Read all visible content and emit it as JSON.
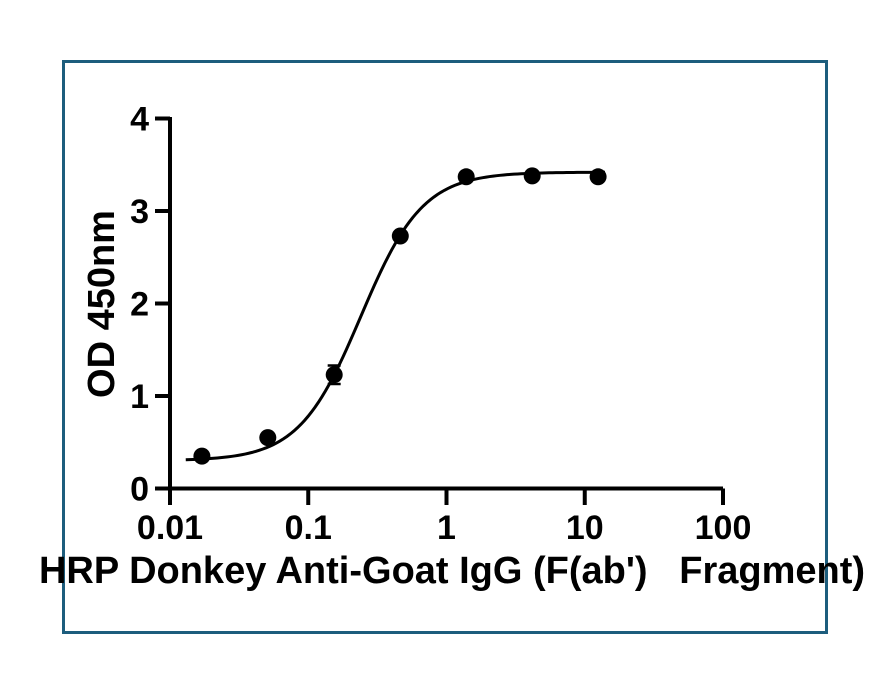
{
  "page": {
    "background": "#ffffff"
  },
  "frame": {
    "border_color": "#1d5d7d"
  },
  "chart_data": {
    "type": "scatter",
    "title": "",
    "xlabel": "HRP Donkey Anti-Goat IgG (F(ab')   Fragment)",
    "ylabel": "OD 450nm",
    "x_scale": "log",
    "xlim": [
      0.01,
      100
    ],
    "ylim": [
      0,
      4
    ],
    "x_ticks": [
      0.01,
      0.1,
      1,
      10,
      100
    ],
    "x_tick_labels": [
      "0.01",
      "0.1",
      "1",
      "10",
      "100"
    ],
    "y_ticks": [
      0,
      1,
      2,
      3,
      4
    ],
    "y_tick_labels": [
      "0",
      "1",
      "2",
      "3",
      "4"
    ],
    "grid": false,
    "legend": "none",
    "series": [
      {
        "name": "HRP Donkey Anti-Goat IgG F(ab') Fragment",
        "x": [
          0.017,
          0.051,
          0.154,
          0.463,
          1.389,
          4.167,
          12.5
        ],
        "y": [
          0.35,
          0.55,
          1.23,
          2.73,
          3.37,
          3.38,
          3.37
        ],
        "y_err": [
          0,
          0,
          0.1,
          0,
          0,
          0,
          0
        ]
      }
    ],
    "fit_curve": {
      "model": "4PL",
      "bottom": 0.3,
      "top": 3.42,
      "ec50": 0.24,
      "hill": 1.94,
      "x_start": 0.013,
      "x_end": 14
    },
    "marker_color": "#000000",
    "line_color": "#000000",
    "axis_color": "#000000"
  }
}
